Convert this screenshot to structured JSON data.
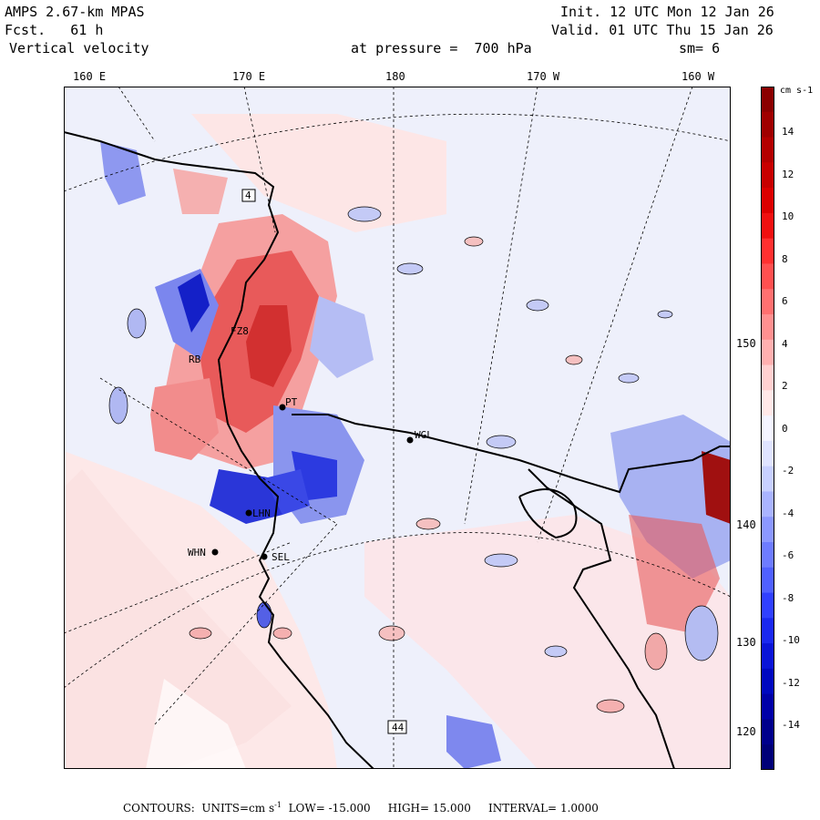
{
  "header": {
    "model": "AMPS 2.67-km MPAS",
    "fcst_label": "Fcst.",
    "fcst_value": "61 h",
    "field": "Vertical velocity",
    "pressure_label": "at pressure =",
    "pressure_value": "700 hPa",
    "init": "Init. 12 UTC Mon 12 Jan 26",
    "valid": "Valid. 01 UTC Thu 15 Jan 26",
    "smooth": "sm= 6"
  },
  "longitude_labels": [
    "160 E",
    "170 E",
    "180",
    "170 W",
    "160 W"
  ],
  "latitude_labels": [
    "150 W",
    "140 W",
    "130 W",
    "120 W"
  ],
  "colorbar": {
    "units": "cm s-1",
    "ticks": [
      "14",
      "12",
      "10",
      "8",
      "6",
      "4",
      "2",
      "0",
      "-2",
      "-4",
      "-6",
      "-8",
      "-10",
      "-12",
      "-14"
    ],
    "colors": [
      "#8b0000",
      "#a00000",
      "#b40000",
      "#c80000",
      "#dc0000",
      "#f01010",
      "#ff3030",
      "#ff5050",
      "#ff7070",
      "#ff9090",
      "#ffb0b0",
      "#ffd0d0",
      "#ffe8e8",
      "#f4f4ff",
      "#e0e4ff",
      "#c8d0ff",
      "#aab4ff",
      "#8c98ff",
      "#6e7cff",
      "#5060ff",
      "#3040ff",
      "#1a28f0",
      "#0a14d8",
      "#0008c0",
      "#0000a8",
      "#00008c",
      "#000078"
    ]
  },
  "stations": [
    "4",
    "FZ8",
    "RB",
    "PT",
    "WGL",
    "LHN",
    "WHN",
    "SEL",
    "44"
  ],
  "footer": {
    "contours_label": "CONTOURS:",
    "units_label": "UNITS=cm s",
    "units_exp": "-1",
    "low_label": "LOW=",
    "low_value": "-15.000",
    "high_label": "HIGH=",
    "high_value": "15.000",
    "interval_label": "INTERVAL=",
    "interval_value": "1.0000"
  }
}
